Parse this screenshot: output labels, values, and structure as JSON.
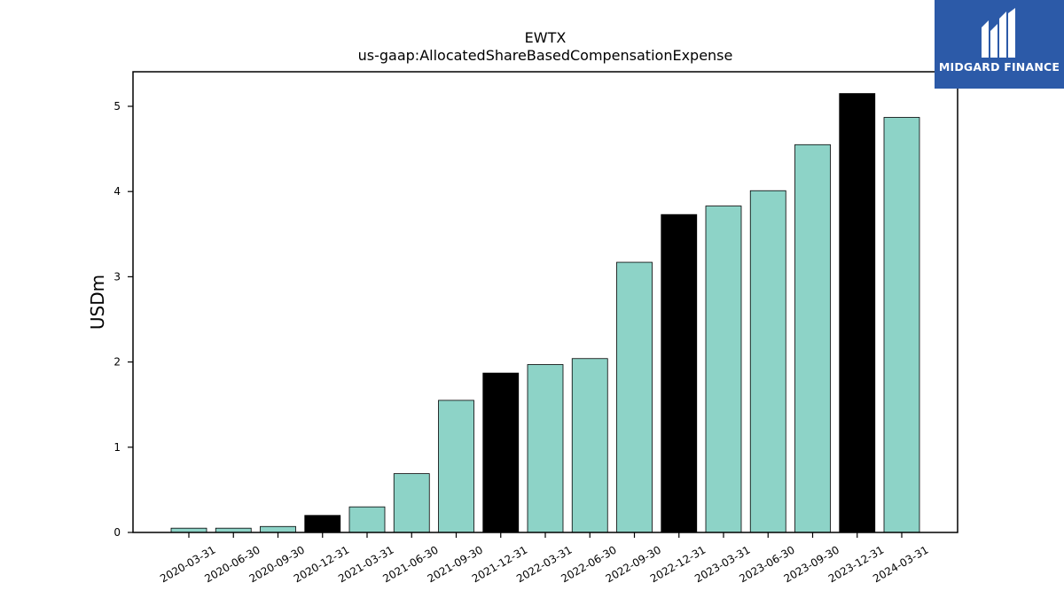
{
  "brand": {
    "name": "MIDGARD FINANCE",
    "background": "#2c5aa8",
    "icon": "midgard-logo-icon"
  },
  "chart_data": {
    "type": "bar",
    "title": "EWTX",
    "subtitle": "us-gaap:AllocatedShareBasedCompensationExpense",
    "xlabel": "",
    "ylabel": "USDm",
    "ylim": [
      0,
      5.4
    ],
    "yticks": [
      0,
      1,
      2,
      3,
      4,
      5
    ],
    "grid": false,
    "categories": [
      "2020-03-31",
      "2020-06-30",
      "2020-09-30",
      "2020-12-31",
      "2021-03-31",
      "2021-06-30",
      "2021-09-30",
      "2021-12-31",
      "2022-03-31",
      "2022-06-30",
      "2022-09-30",
      "2022-12-31",
      "2023-03-31",
      "2023-06-30",
      "2023-09-30",
      "2023-12-31",
      "2024-03-31"
    ],
    "values": [
      0.05,
      0.05,
      0.07,
      0.2,
      0.3,
      0.69,
      1.55,
      1.87,
      1.97,
      2.04,
      3.17,
      3.73,
      3.83,
      4.01,
      4.55,
      5.15,
      4.87
    ],
    "colors": {
      "quarter": "#8dd3c7",
      "year_end": "#000000",
      "edge": "#000000"
    },
    "year_end_categories": [
      "2020-12-31",
      "2021-12-31",
      "2022-12-31",
      "2023-12-31"
    ]
  }
}
